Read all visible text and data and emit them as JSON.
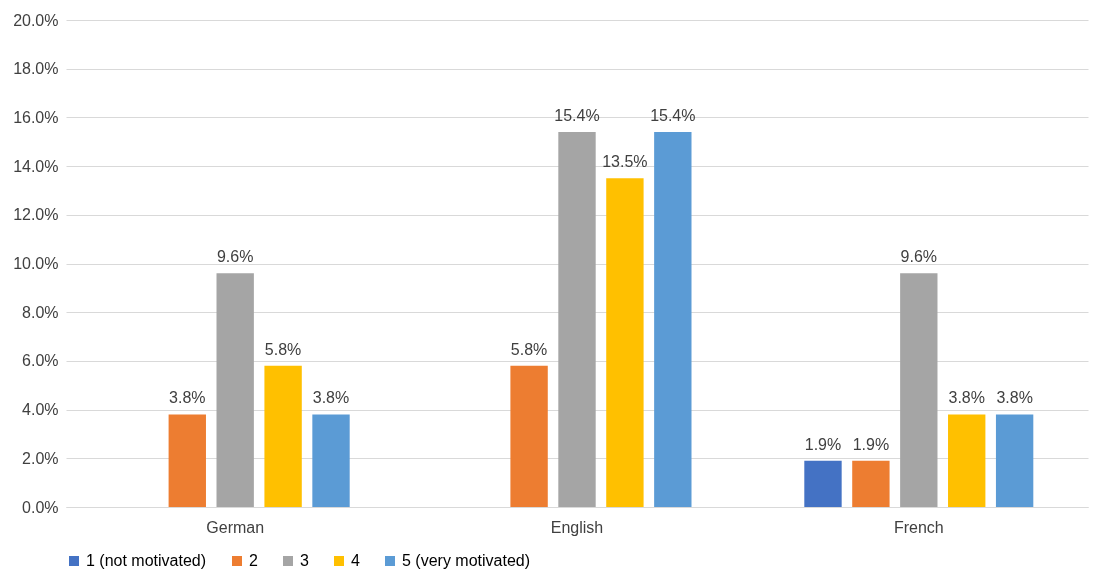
{
  "chart_data": {
    "type": "bar",
    "categories": [
      "German",
      "English",
      "French"
    ],
    "series": [
      {
        "name": "1 (not motivated)",
        "color": "#4472c4",
        "values": [
          null,
          null,
          1.9
        ],
        "value_labels": [
          null,
          null,
          "1.9%"
        ]
      },
      {
        "name": "2",
        "color": "#ed7d31",
        "values": [
          3.8,
          5.8,
          1.9
        ],
        "value_labels": [
          "3.8%",
          "5.8%",
          "1.9%"
        ]
      },
      {
        "name": "3",
        "color": "#a5a5a5",
        "values": [
          9.6,
          15.4,
          9.6
        ],
        "value_labels": [
          "9.6%",
          "15.4%",
          "9.6%"
        ]
      },
      {
        "name": "4",
        "color": "#ffc000",
        "values": [
          5.8,
          13.5,
          3.8
        ],
        "value_labels": [
          "5.8%",
          "13.5%",
          "3.8%"
        ]
      },
      {
        "name": "5 (very motivated)",
        "color": "#5b9bd5",
        "values": [
          3.8,
          15.4,
          3.8
        ],
        "value_labels": [
          "3.8%",
          "15.4%",
          "3.8%"
        ]
      }
    ],
    "ylim": [
      0,
      20
    ],
    "yticks": [
      {
        "value": 0,
        "label": "0.0%"
      },
      {
        "value": 2,
        "label": "2.0%"
      },
      {
        "value": 4,
        "label": "4.0%"
      },
      {
        "value": 6,
        "label": "6.0%"
      },
      {
        "value": 8,
        "label": "8.0%"
      },
      {
        "value": 10,
        "label": "10.0%"
      },
      {
        "value": 12,
        "label": "12.0%"
      },
      {
        "value": 14,
        "label": "14.0%"
      },
      {
        "value": 16,
        "label": "16.0%"
      },
      {
        "value": 18,
        "label": "18.0%"
      },
      {
        "value": 20,
        "label": "20.0%"
      }
    ],
    "grid": "y",
    "legend": "bottom"
  }
}
